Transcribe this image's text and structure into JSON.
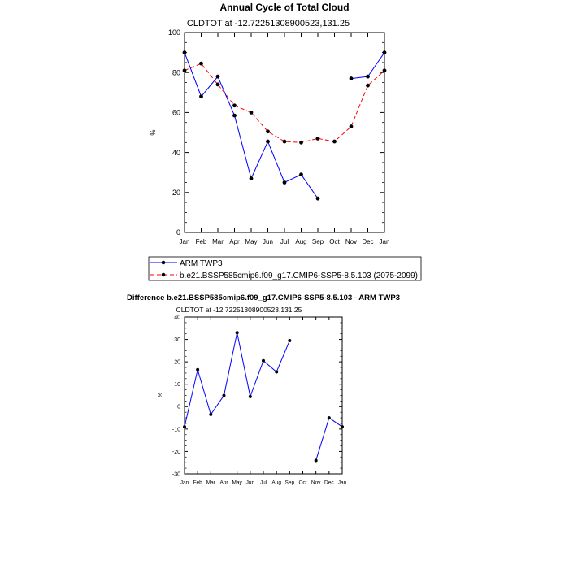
{
  "chart_data": [
    {
      "type": "line",
      "title": "Annual Cycle of Total Cloud",
      "subtitle": "CLDTOT at -12.72251308900523,131.25",
      "ylabel": "%",
      "xlabel": "",
      "ylim": [
        0,
        100
      ],
      "yticks": [
        "0",
        "20",
        "40",
        "60",
        "80",
        "100"
      ],
      "yticks_values": [
        0,
        20,
        40,
        60,
        80,
        100
      ],
      "categories": [
        "Jan",
        "Feb",
        "Mar",
        "Apr",
        "May",
        "Jun",
        "Jul",
        "Aug",
        "Sep",
        "Oct",
        "Nov",
        "Dec",
        "Jan"
      ],
      "series": [
        {
          "name": "ARM TWP3",
          "color": "#0000ff",
          "dash": "solid",
          "values": [
            90,
            68,
            78,
            58.5,
            27,
            45.5,
            25,
            29,
            17,
            null,
            77,
            78,
            90
          ]
        },
        {
          "name": "b.e21.BSSP585cmip6.f09_g17.CMIP6-SSP5-8.5.103 (2075-2099)",
          "color": "#ff0000",
          "dash": "dashed",
          "values": [
            81,
            84.5,
            74,
            63.5,
            60,
            50.5,
            45.5,
            45,
            47,
            45.5,
            53,
            73.5,
            81
          ]
        }
      ],
      "legend_position": "bottom-left"
    },
    {
      "type": "line",
      "title": "Difference b.e21.BSSP585cmip6.f09_g17.CMIP6-SSP5-8.5.103 - ARM TWP3",
      "subtitle": "CLDTOT at -12.72251308900523,131.25",
      "ylabel": "%",
      "xlabel": "",
      "ylim": [
        -30,
        40
      ],
      "yticks": [
        "-30",
        "-20",
        "-10",
        "0",
        "10",
        "20",
        "30",
        "40"
      ],
      "yticks_values": [
        -30,
        -20,
        -10,
        0,
        10,
        20,
        30,
        40
      ],
      "categories": [
        "Jan",
        "Feb",
        "Mar",
        "Apr",
        "May",
        "Jun",
        "Jul",
        "Aug",
        "Sep",
        "Oct",
        "Nov",
        "Dec",
        "Jan"
      ],
      "series": [
        {
          "name": "Difference",
          "color": "#0000ff",
          "dash": "solid",
          "values": [
            -9,
            16.5,
            -3.5,
            5,
            33,
            4.5,
            20.5,
            15.5,
            29.5,
            null,
            -24,
            -5,
            -9
          ]
        }
      ]
    }
  ]
}
